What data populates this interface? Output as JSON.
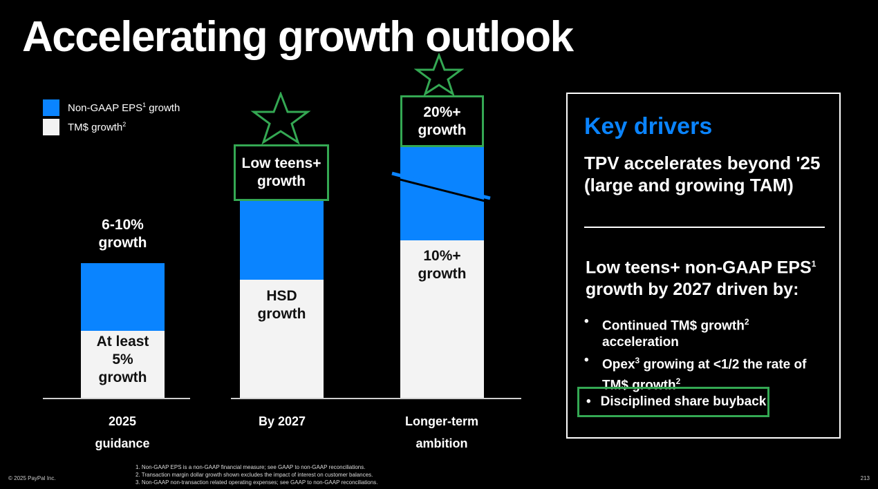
{
  "title": "Accelerating growth outlook",
  "legend": {
    "eps_prefix": "Non-GAAP EPS",
    "eps_sup": "1",
    "eps_suffix": " growth",
    "tm_prefix": "TM$ growth",
    "tm_sup": "2",
    "colors": {
      "eps": "#0a84ff",
      "tm": "#f3f3f3"
    }
  },
  "chart_data": {
    "type": "bar",
    "stacked": true,
    "categories": [
      "2025 guidance",
      "By 2027",
      "Longer-term ambition"
    ],
    "series": [
      {
        "name": "TM$ growth",
        "labels": [
          "At least 5% growth",
          "HSD growth",
          "10%+ growth"
        ]
      },
      {
        "name": "Non-GAAP EPS growth",
        "labels": [
          "6-10% growth",
          "Low teens+ growth",
          "20%+ growth"
        ]
      }
    ]
  },
  "bars": {
    "b2025": {
      "eps_line1": "6-10%",
      "eps_line2": "growth",
      "tm_line1": "At least",
      "tm_line2": "5%",
      "tm_line3": "growth",
      "cat_line1": "2025",
      "cat_line2": "guidance"
    },
    "b2027": {
      "eps_line1": "Low teens+",
      "eps_line2": "growth",
      "tm_line1": "HSD",
      "tm_line2": "growth",
      "cat_line1": "By 2027"
    },
    "blong": {
      "eps_line1": "20%+",
      "eps_line2": "growth",
      "tm_line1": "10%+",
      "tm_line2": "growth",
      "cat_line1": "Longer-term",
      "cat_line2": "ambition"
    }
  },
  "panel": {
    "heading": "Key drivers",
    "tpv_line1": "TPV accelerates beyond '25",
    "tpv_line2": "(large and growing TAM)",
    "sub_line1_prefix": "Low teens+ non-GAAP EPS",
    "sub_line1_sup": "1",
    "sub_line2": "growth by 2027 driven by:",
    "bullets": [
      {
        "prefix": "Continued TM$ growth",
        "sup": "2",
        "line2": "acceleration"
      },
      {
        "prefix": "Opex",
        "sup": "3",
        "middle": " growing at <1/2 the rate of",
        "line2_prefix": "TM$ growth",
        "line2_sup": "2"
      },
      {
        "text": "Disciplined share buyback"
      }
    ],
    "bullet_glyph": "•"
  },
  "footnotes": [
    "1.  Non-GAAP EPS is a non-GAAP financial measure; see GAAP to non-GAAP reconciliations.",
    "2.  Transaction margin dollar growth shown excludes the impact of interest on customer balances.",
    "3.  Non-GAAP non-transaction related operating expenses; see GAAP to non-GAAP reconciliations."
  ],
  "copyright": "© 2025 PayPal Inc.",
  "page_number": "213",
  "accent_green": "#34a853"
}
